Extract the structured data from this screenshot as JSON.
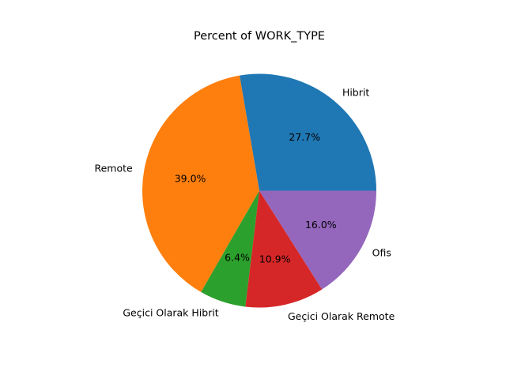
{
  "chart_data": {
    "type": "pie",
    "title": "Percent of WORK_TYPE",
    "slices": [
      {
        "label": "Hibrit",
        "value": 27.7,
        "pct_label": "27.7%",
        "color": "#1f77b4"
      },
      {
        "label": "Remote",
        "value": 39.0,
        "pct_label": "39.0%",
        "color": "#ff7f0e"
      },
      {
        "label": "Geçici Olarak Hibrit",
        "value": 6.4,
        "pct_label": "6.4%",
        "color": "#2ca02c"
      },
      {
        "label": "Geçici Olarak Remote",
        "value": 10.9,
        "pct_label": "10.9%",
        "color": "#d62728"
      },
      {
        "label": "Ofis",
        "value": 16.0,
        "pct_label": "16.0%",
        "color": "#9467bd"
      }
    ]
  }
}
